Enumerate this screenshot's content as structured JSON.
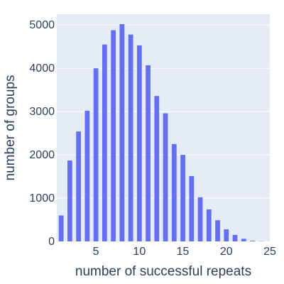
{
  "chart_data": {
    "type": "bar",
    "title": "",
    "xlabel": "number of successful repeats",
    "ylabel": "number of groups",
    "x": [
      1,
      2,
      3,
      4,
      5,
      6,
      7,
      8,
      9,
      10,
      11,
      12,
      13,
      14,
      15,
      16,
      17,
      18,
      19,
      20,
      21,
      22,
      23,
      24
    ],
    "values": [
      600,
      1870,
      2540,
      3020,
      4000,
      4550,
      4880,
      5020,
      4780,
      4530,
      4070,
      3360,
      2960,
      2250,
      2000,
      1510,
      1020,
      740,
      490,
      280,
      150,
      60,
      15,
      5
    ],
    "xlim": [
      0.5,
      25
    ],
    "ylim": [
      0,
      5250
    ],
    "x_ticks": [
      5,
      10,
      15,
      20,
      25
    ],
    "y_ticks": [
      0,
      1000,
      2000,
      3000,
      4000,
      5000
    ],
    "grid": true,
    "colors": {
      "bar": "#636EFA",
      "plot_background": "#E5ECF6",
      "grid": "#ffffff",
      "text": "#2a3f5f"
    }
  }
}
